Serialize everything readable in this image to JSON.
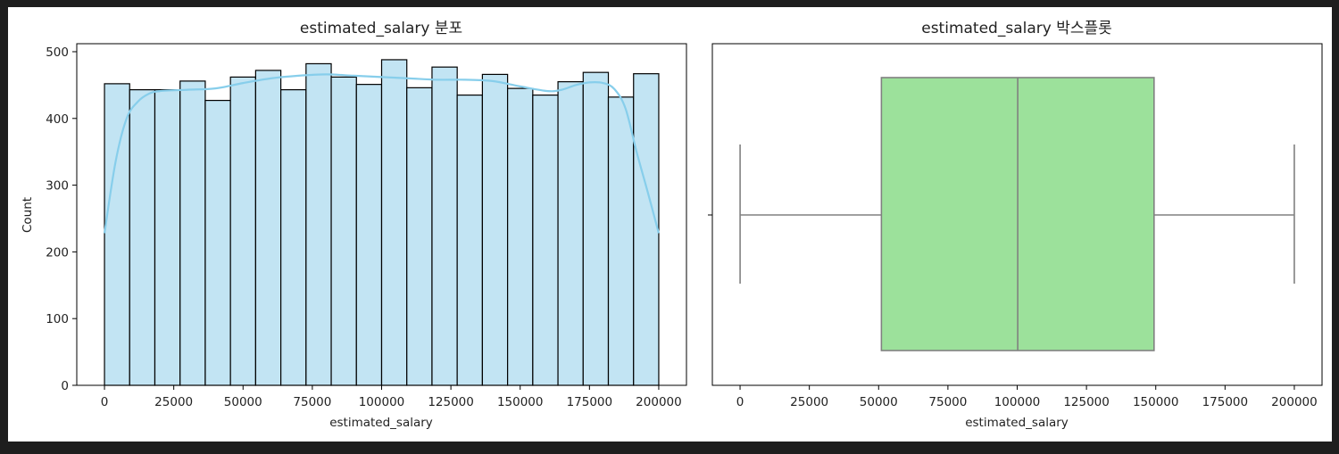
{
  "colors": {
    "frame": "#1e1e1e",
    "hist_fill": "#c2e4f3",
    "hist_edge": "#000000",
    "kde_line": "#87ceeb",
    "box_fill": "#9ce19b",
    "box_line": "#808080"
  },
  "chart_data": [
    {
      "type": "histogram",
      "title": "estimated_salary 분포",
      "xlabel": "estimated_salary",
      "ylabel": "Count",
      "xlim": [
        -10000,
        210000
      ],
      "ylim": [
        0,
        512
      ],
      "xticks": [
        0,
        25000,
        50000,
        75000,
        100000,
        125000,
        150000,
        175000,
        200000
      ],
      "yticks": [
        0,
        100,
        200,
        300,
        400,
        500
      ],
      "bin_start": 0,
      "bin_width": 9091,
      "counts": [
        452,
        443,
        443,
        456,
        427,
        462,
        472,
        443,
        482,
        462,
        451,
        488,
        446,
        477,
        435,
        466,
        445,
        435,
        455,
        469,
        432,
        467
      ],
      "kde": {
        "x": [
          0,
          4000,
          8000,
          12000,
          16000,
          20000,
          30000,
          40000,
          50000,
          60000,
          70000,
          80000,
          90000,
          100000,
          110000,
          120000,
          130000,
          140000,
          150000,
          160000,
          165000,
          170000,
          175000,
          180000,
          184000,
          188000,
          192000,
          196000,
          200000
        ],
        "y": [
          228,
          335,
          400,
          425,
          437,
          441,
          443,
          445,
          453,
          460,
          464,
          466,
          464,
          462,
          460,
          458,
          458,
          456,
          448,
          441,
          443,
          450,
          454,
          453,
          444,
          415,
          350,
          290,
          228
        ]
      },
      "grid": false
    },
    {
      "type": "box",
      "title": "estimated_salary 박스플롯",
      "xlabel": "estimated_salary",
      "xlim": [
        -10000,
        210000
      ],
      "xticks": [
        0,
        25000,
        50000,
        75000,
        100000,
        125000,
        150000,
        175000,
        200000
      ],
      "whisker_low": 12,
      "q1": 51002,
      "median": 100194,
      "q3": 149388,
      "whisker_high": 199992,
      "grid": false
    }
  ]
}
